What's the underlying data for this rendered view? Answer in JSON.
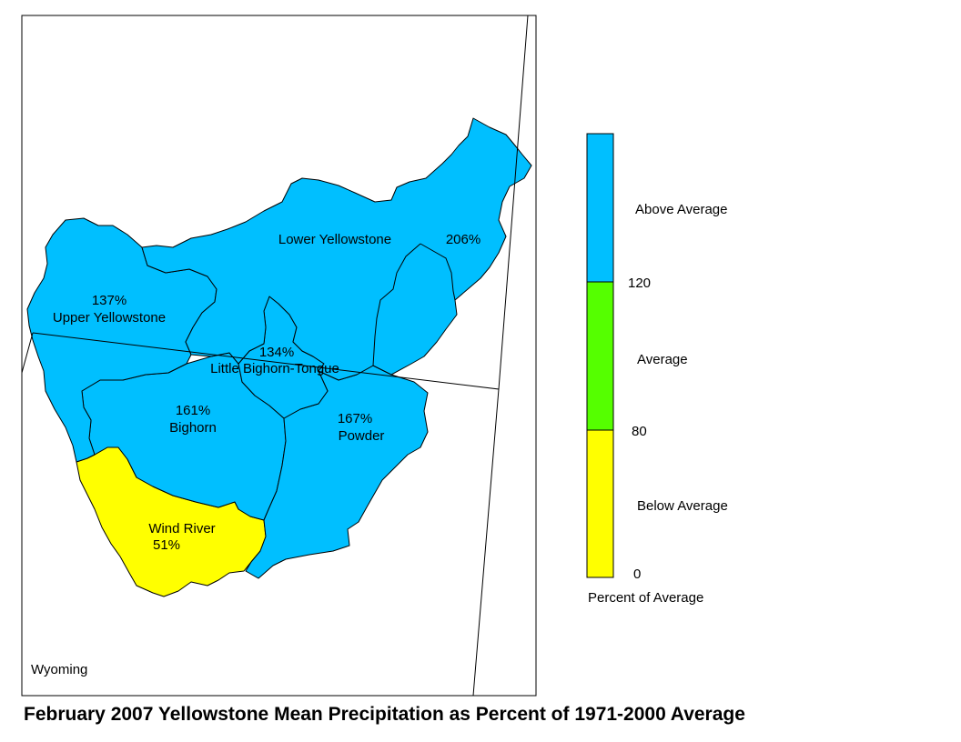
{
  "title": "February 2007 Yellowstone Mean Precipitation as Percent of 1971-2000 Average",
  "map": {
    "state_label": "Wyoming",
    "basins": [
      {
        "name": "Lower Yellowstone",
        "percent": "206%",
        "category": "above"
      },
      {
        "name": "Upper Yellowstone",
        "percent": "137%",
        "category": "above"
      },
      {
        "name": "Little Bighorn-Tongue",
        "percent": "134%",
        "category": "above"
      },
      {
        "name": "Bighorn",
        "percent": "161%",
        "category": "above"
      },
      {
        "name": "Powder",
        "percent": "167%",
        "category": "above"
      },
      {
        "name": "Wind River",
        "percent": "51%",
        "category": "below"
      }
    ]
  },
  "legend": {
    "title": "Percent of Average",
    "classes": [
      {
        "label": "Above Average",
        "color": "#00bfff"
      },
      {
        "label": "Average",
        "color": "#55ff00"
      },
      {
        "label": "Below Average",
        "color": "#ffff00"
      }
    ],
    "ticks": [
      "120",
      "80",
      "0"
    ]
  },
  "colors": {
    "above": "#00bfff",
    "average": "#55ff00",
    "below": "#ffff00"
  }
}
